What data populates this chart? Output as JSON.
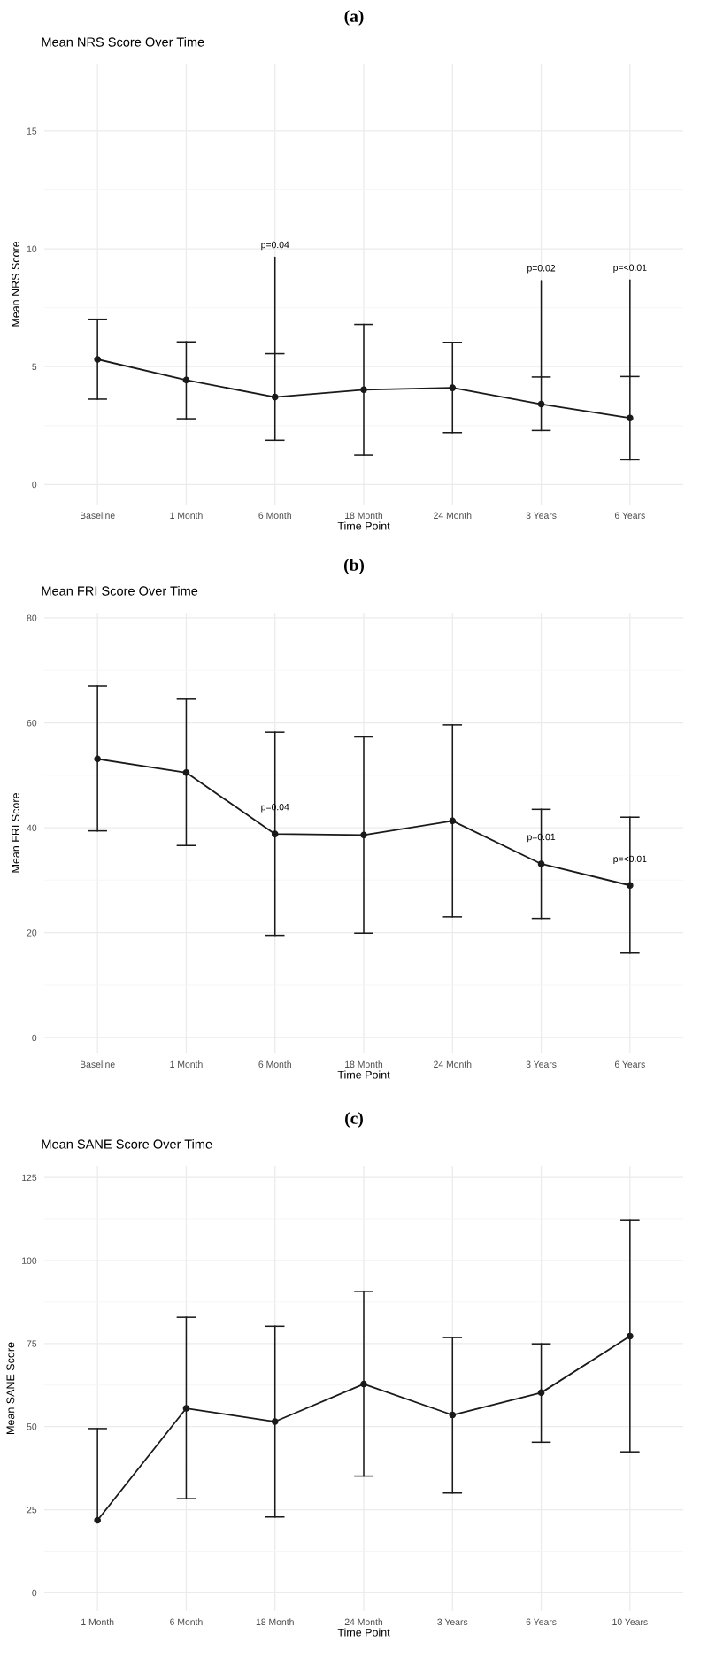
{
  "chart_data": [
    {
      "type": "line",
      "title": "Mean NRS Score Over Time",
      "xlabel": "Time Point",
      "ylabel": "Mean NRS Score",
      "categories": [
        "Baseline",
        "1 Month",
        "6 Month",
        "18 Month",
        "24 Month",
        "3 Years",
        "6 Years"
      ],
      "series": [
        {
          "color": "#1a1a1a",
          "values": [
            5.31,
            4.43,
            3.71,
            4.02,
            4.1,
            3.41,
            2.82
          ],
          "errors": [
            [
              3.62,
              7.01
            ],
            [
              2.79,
              6.05
            ],
            [
              1.88,
              5.55
            ],
            [
              1.25,
              6.79
            ],
            [
              2.2,
              6.03
            ],
            [
              2.29,
              4.56
            ],
            [
              1.05,
              4.58
            ]
          ]
        }
      ],
      "ylim": [
        -0.85,
        17.85
      ],
      "yticks": [
        0,
        5,
        10,
        15
      ],
      "grid": true,
      "marker": "circle",
      "line_style": "solid",
      "annotations": [
        "(a)",
        {
          "text": "p=0.04",
          "x": "6 Month",
          "y": 5.55
        },
        {
          "text": "p=0.02",
          "x": "3 Years",
          "y": 4.56
        },
        {
          "text": "p=<0.01",
          "x": "6 Years",
          "y": 4.58
        }
      ]
    },
    {
      "type": "line",
      "title": "Mean FRI Score Over Time",
      "xlabel": "Time Point",
      "ylabel": "Mean FRI Score",
      "categories": [
        "Baseline",
        "1 Month",
        "6 Month",
        "18 Month",
        "24 Month",
        "3 Years",
        "6 Years"
      ],
      "series": [
        {
          "color": "#1a1a1a",
          "values": [
            53.1,
            50.5,
            38.8,
            38.6,
            41.3,
            33.1,
            29.0
          ],
          "errors": [
            [
              39.4,
              67.0
            ],
            [
              36.6,
              64.5
            ],
            [
              19.5,
              58.2
            ],
            [
              19.9,
              57.3
            ],
            [
              23.0,
              59.6
            ],
            [
              22.7,
              43.5
            ],
            [
              16.1,
              42.0
            ]
          ]
        }
      ],
      "ylim": [
        -3,
        81
      ],
      "yticks": [
        0,
        20,
        40,
        60,
        80
      ],
      "grid": true,
      "marker": "circle",
      "line_style": "solid",
      "annotations": [
        "(b)",
        {
          "text": "p=0.04",
          "x": "6 Month",
          "y": 43.8
        },
        {
          "text": "p=0.01",
          "x": "3 Years",
          "y": 38.1
        },
        {
          "text": "p=<0.01",
          "x": "6 Years",
          "y": 33.9
        }
      ]
    },
    {
      "type": "line",
      "title": "Mean SANE Score Over Time",
      "xlabel": "Time Point",
      "ylabel": "Mean SANE Score",
      "categories": [
        "1 Month",
        "6 Month",
        "18 Month",
        "24 Month",
        "3 Years",
        "6 Years",
        "10 Years"
      ],
      "series": [
        {
          "color": "#1a1a1a",
          "values": [
            21.8,
            55.5,
            51.5,
            62.8,
            53.5,
            60.2,
            77.2
          ],
          "errors": [
            [
              21.8,
              49.4
            ],
            [
              28.3,
              82.9
            ],
            [
              22.8,
              80.2
            ],
            [
              35.1,
              90.7
            ],
            [
              30.0,
              76.8
            ],
            [
              45.3,
              74.9
            ],
            [
              42.4,
              112.2
            ]
          ]
        }
      ],
      "ylim": [
        -5.5,
        128.5
      ],
      "yticks": [
        0,
        25,
        50,
        75,
        100,
        125
      ],
      "grid": true,
      "marker": "circle",
      "line_style": "solid",
      "annotations": [
        "(c)"
      ]
    }
  ]
}
